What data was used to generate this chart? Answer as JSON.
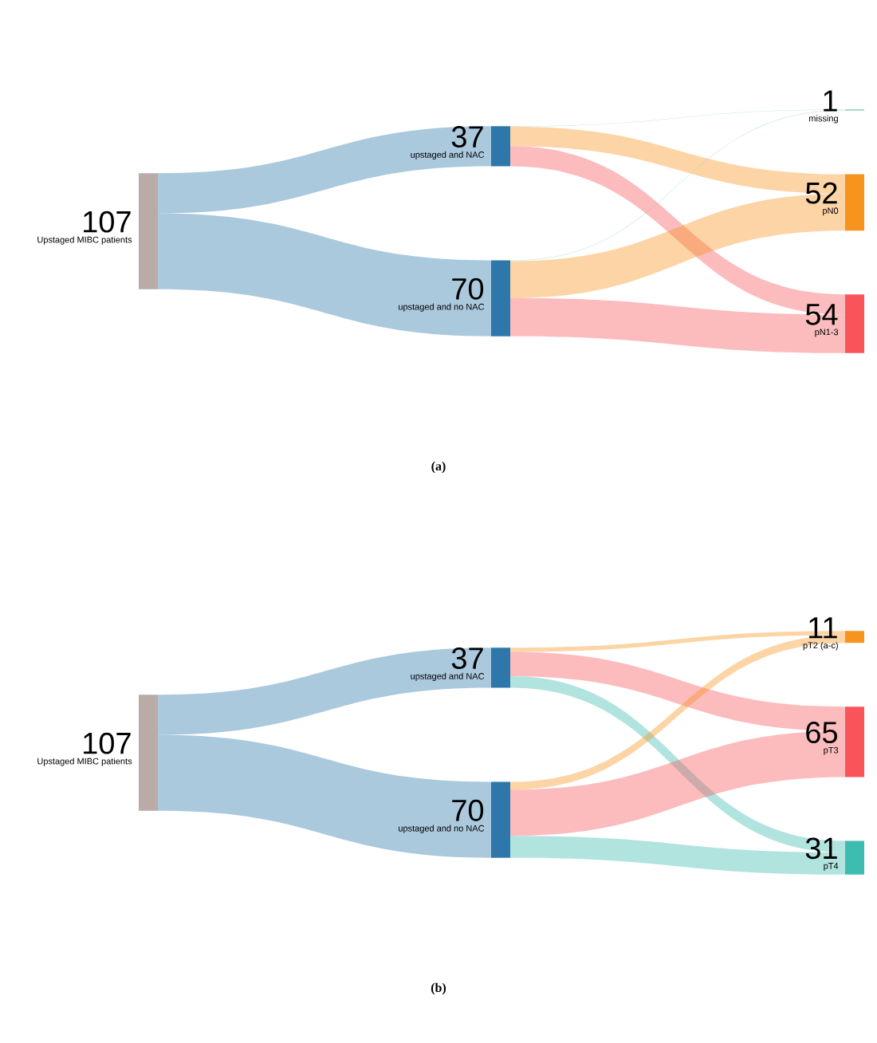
{
  "chart_data": [
    {
      "type": "other",
      "title": "(a)",
      "categories": [
        "Upstaged MIBC patients",
        "upstaged and NAC",
        "upstaged and no NAC",
        "missing",
        "pN0",
        "pN1-3"
      ],
      "values": [
        107,
        37,
        70,
        1,
        52,
        54
      ],
      "colors": [
        "#b9aba5",
        "#2e77ab",
        "#2e77ab",
        "#82c8c0",
        "#f7941d",
        "#f8545a"
      ],
      "data_labels": true
    },
    {
      "type": "other",
      "title": "(b)",
      "categories": [
        "Upstaged MIBC patients",
        "upstaged and NAC",
        "upstaged and no NAC",
        "pT2 (a-c)",
        "pT3",
        "pT4"
      ],
      "values": [
        107,
        37,
        70,
        11,
        65,
        31
      ],
      "colors": [
        "#b9aba5",
        "#2e77ab",
        "#2e77ab",
        "#f7941d",
        "#f8545a",
        "#3dbcb0"
      ],
      "data_labels": true
    }
  ]
}
